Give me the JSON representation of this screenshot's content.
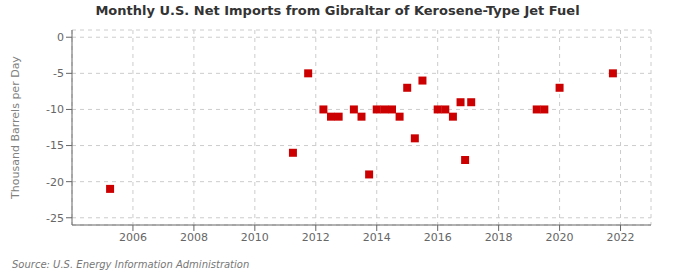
{
  "chart_data": {
    "type": "scatter",
    "title": "Monthly U.S. Net Imports from Gibraltar of Kerosene-Type Jet Fuel",
    "y_label": "Thousand Barrels per Day",
    "annotations": [
      "Source: U.S. Energy Information Administration"
    ],
    "x": [
      2005.25,
      2011.25,
      2011.75,
      2012.25,
      2012.5,
      2012.75,
      2013.25,
      2013.5,
      2013.75,
      2014.0,
      2014.25,
      2014.5,
      2014.75,
      2015.0,
      2015.25,
      2015.5,
      2016.0,
      2016.25,
      2016.5,
      2016.75,
      2016.9,
      2017.1,
      2019.25,
      2019.5,
      2020.0,
      2021.75
    ],
    "values": [
      -21,
      -16,
      -5,
      -10,
      -11,
      -11,
      -10,
      -11,
      -19,
      -10,
      -10,
      -10,
      -11,
      -7,
      -14,
      -6,
      -10,
      -10,
      -11,
      -9,
      -17,
      -9,
      -10,
      -10,
      -7,
      -5
    ],
    "color": "#cc0000",
    "marker": "square",
    "xlim": [
      2004.0,
      2023.0
    ],
    "ylim": [
      -26,
      1
    ],
    "xticks": [
      2006,
      2008,
      2010,
      2012,
      2014,
      2016,
      2018,
      2020,
      2022
    ],
    "yticks": [
      0,
      -5,
      -10,
      -15,
      -20,
      -25
    ],
    "grid": true
  }
}
